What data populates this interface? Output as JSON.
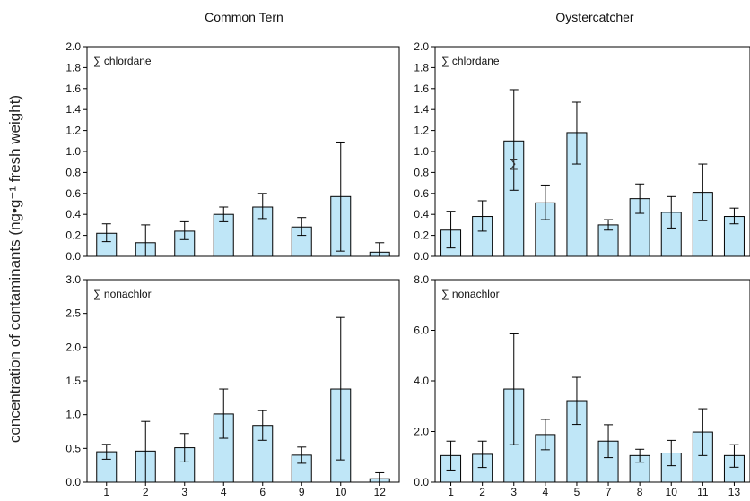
{
  "figure": {
    "ylabel": "concentration of contaminants (ng•g⁻¹ fresh weight)",
    "column_titles": [
      "Common Tern",
      "Oystercatcher"
    ]
  },
  "colors": {
    "bar_fill": "#bfe6f7",
    "stroke": "#000000"
  },
  "chart_data": [
    {
      "type": "bar",
      "species": "Common Tern",
      "panel_label": "∑ chlordane",
      "categories": [
        "1",
        "2",
        "3",
        "4",
        "6",
        "9",
        "10",
        "12"
      ],
      "values": [
        0.22,
        0.13,
        0.24,
        0.4,
        0.47,
        0.28,
        0.57,
        0.04
      ],
      "err_low": [
        0.14,
        0.0,
        0.16,
        0.33,
        0.36,
        0.2,
        0.05,
        0.0
      ],
      "err_high": [
        0.31,
        0.3,
        0.33,
        0.47,
        0.6,
        0.37,
        1.09,
        0.13
      ],
      "ylim": [
        0,
        2.0
      ],
      "yticks": [
        "0.0",
        "0.2",
        "0.4",
        "0.6",
        "0.8",
        "1.0",
        "1.2",
        "1.4",
        "1.6",
        "1.8",
        "2.0"
      ],
      "tick_values": [
        0,
        0.2,
        0.4,
        0.6,
        0.8,
        1.0,
        1.2,
        1.4,
        1.6,
        1.8,
        2.0
      ],
      "show_xticks": false
    },
    {
      "type": "bar",
      "species": "Oystercatcher",
      "panel_label": "∑ chlordane",
      "categories": [
        "1",
        "2",
        "3",
        "4",
        "5",
        "7",
        "8",
        "10",
        "11",
        "13"
      ],
      "values": [
        0.25,
        0.38,
        1.1,
        0.51,
        1.18,
        0.3,
        0.55,
        0.42,
        0.61,
        0.38
      ],
      "err_low": [
        0.08,
        0.24,
        0.63,
        0.35,
        0.88,
        0.25,
        0.41,
        0.27,
        0.34,
        0.31
      ],
      "err_high": [
        0.43,
        0.53,
        1.59,
        0.68,
        1.47,
        0.35,
        0.69,
        0.57,
        0.88,
        0.46
      ],
      "ylim": [
        0,
        2.0
      ],
      "yticks": [
        "0.0",
        "0.2",
        "0.4",
        "0.6",
        "0.8",
        "1.0",
        "1.2",
        "1.4",
        "1.6",
        "1.8",
        "2.0"
      ],
      "tick_values": [
        0,
        0.2,
        0.4,
        0.6,
        0.8,
        1.0,
        1.2,
        1.4,
        1.6,
        1.8,
        2.0
      ],
      "show_xticks": false,
      "annotation": "∑"
    },
    {
      "type": "bar",
      "species": "Common Tern",
      "panel_label": "∑ nonachlor",
      "categories": [
        "1",
        "2",
        "3",
        "4",
        "6",
        "9",
        "10",
        "12"
      ],
      "values": [
        0.45,
        0.46,
        0.51,
        1.01,
        0.84,
        0.4,
        1.38,
        0.05
      ],
      "err_low": [
        0.34,
        0.0,
        0.3,
        0.65,
        0.62,
        0.28,
        0.33,
        0.0
      ],
      "err_high": [
        0.56,
        0.9,
        0.72,
        1.38,
        1.06,
        0.52,
        2.44,
        0.14
      ],
      "ylim": [
        0,
        3.0
      ],
      "yticks": [
        "0.0",
        "0.5",
        "1.0",
        "1.5",
        "2.0",
        "2.5",
        "3.0"
      ],
      "tick_values": [
        0,
        0.5,
        1.0,
        1.5,
        2.0,
        2.5,
        3.0
      ],
      "show_xticks": true
    },
    {
      "type": "bar",
      "species": "Oystercatcher",
      "panel_label": "∑ nonachlor",
      "categories": [
        "1",
        "2",
        "3",
        "4",
        "5",
        "7",
        "8",
        "10",
        "11",
        "13"
      ],
      "values": [
        1.05,
        1.1,
        3.68,
        1.88,
        3.22,
        1.62,
        1.05,
        1.15,
        1.98,
        1.05
      ],
      "err_low": [
        0.48,
        0.58,
        1.48,
        1.28,
        2.28,
        0.97,
        0.79,
        0.65,
        1.05,
        0.59
      ],
      "err_high": [
        1.62,
        1.62,
        5.86,
        2.48,
        4.14,
        2.27,
        1.3,
        1.65,
        2.9,
        1.48
      ],
      "ylim": [
        0,
        8.0
      ],
      "yticks": [
        "0.0",
        "2.0",
        "4.0",
        "6.0",
        "8.0"
      ],
      "tick_values": [
        0,
        2.0,
        4.0,
        6.0,
        8.0
      ],
      "show_xticks": true
    }
  ]
}
